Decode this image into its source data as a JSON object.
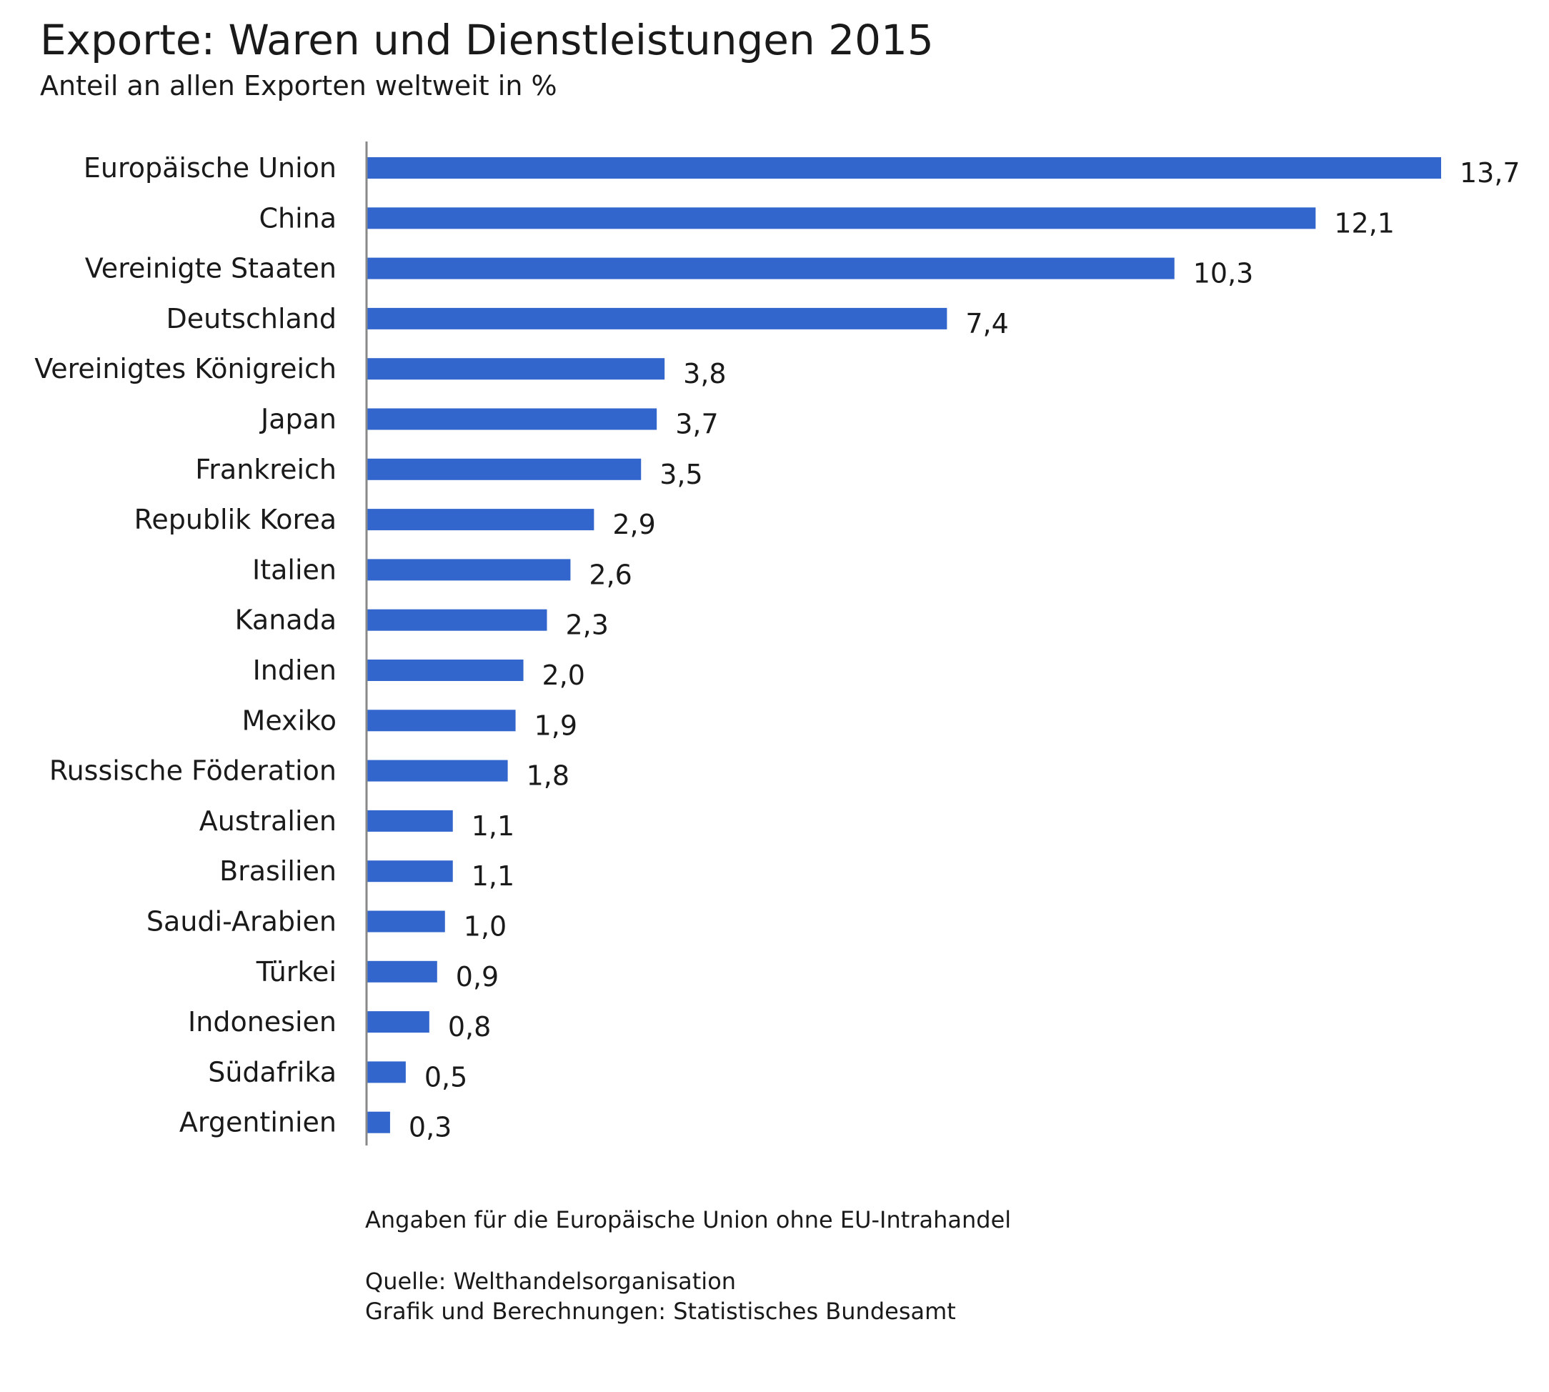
{
  "chart_data": {
    "type": "bar",
    "orientation": "horizontal",
    "title": "Exporte: Waren und Dienstleistungen 2015",
    "subtitle": "Anteil an allen Exporten weltweit in %",
    "categories": [
      "Europäische Union",
      "China",
      "Vereinigte Staaten",
      "Deutschland",
      "Vereinigtes Königreich",
      "Japan",
      "Frankreich",
      "Republik Korea",
      "Italien",
      "Kanada",
      "Indien",
      "Mexiko",
      "Russische Föderation",
      "Australien",
      "Brasilien",
      "Saudi-Arabien",
      "Türkei",
      "Indonesien",
      "Südafrika",
      "Argentinien"
    ],
    "values": [
      13.7,
      12.1,
      10.3,
      7.4,
      3.8,
      3.7,
      3.5,
      2.9,
      2.6,
      2.3,
      2.0,
      1.9,
      1.8,
      1.1,
      1.1,
      1.0,
      0.9,
      0.8,
      0.5,
      0.3
    ],
    "value_labels": [
      "13,7",
      "12,1",
      "10,3",
      "7,4",
      "3,8",
      "3,7",
      "3,5",
      "2,9",
      "2,6",
      "2,3",
      "2,0",
      "1,9",
      "1,8",
      "1,1",
      "1,1",
      "1,0",
      "0,9",
      "0,8",
      "0,5",
      "0,3"
    ],
    "xlim": [
      0,
      13.7
    ],
    "grid": false,
    "legend": "none",
    "bar_color": "#3366cc",
    "axis_color": "#888888"
  },
  "notes": {
    "footnote": "Angaben für die Europäische Union ohne EU-Intrahandel",
    "source": "Quelle: Welthandelsorganisation",
    "credit": "Grafik und Berechnungen: Statistisches Bundesamt"
  }
}
